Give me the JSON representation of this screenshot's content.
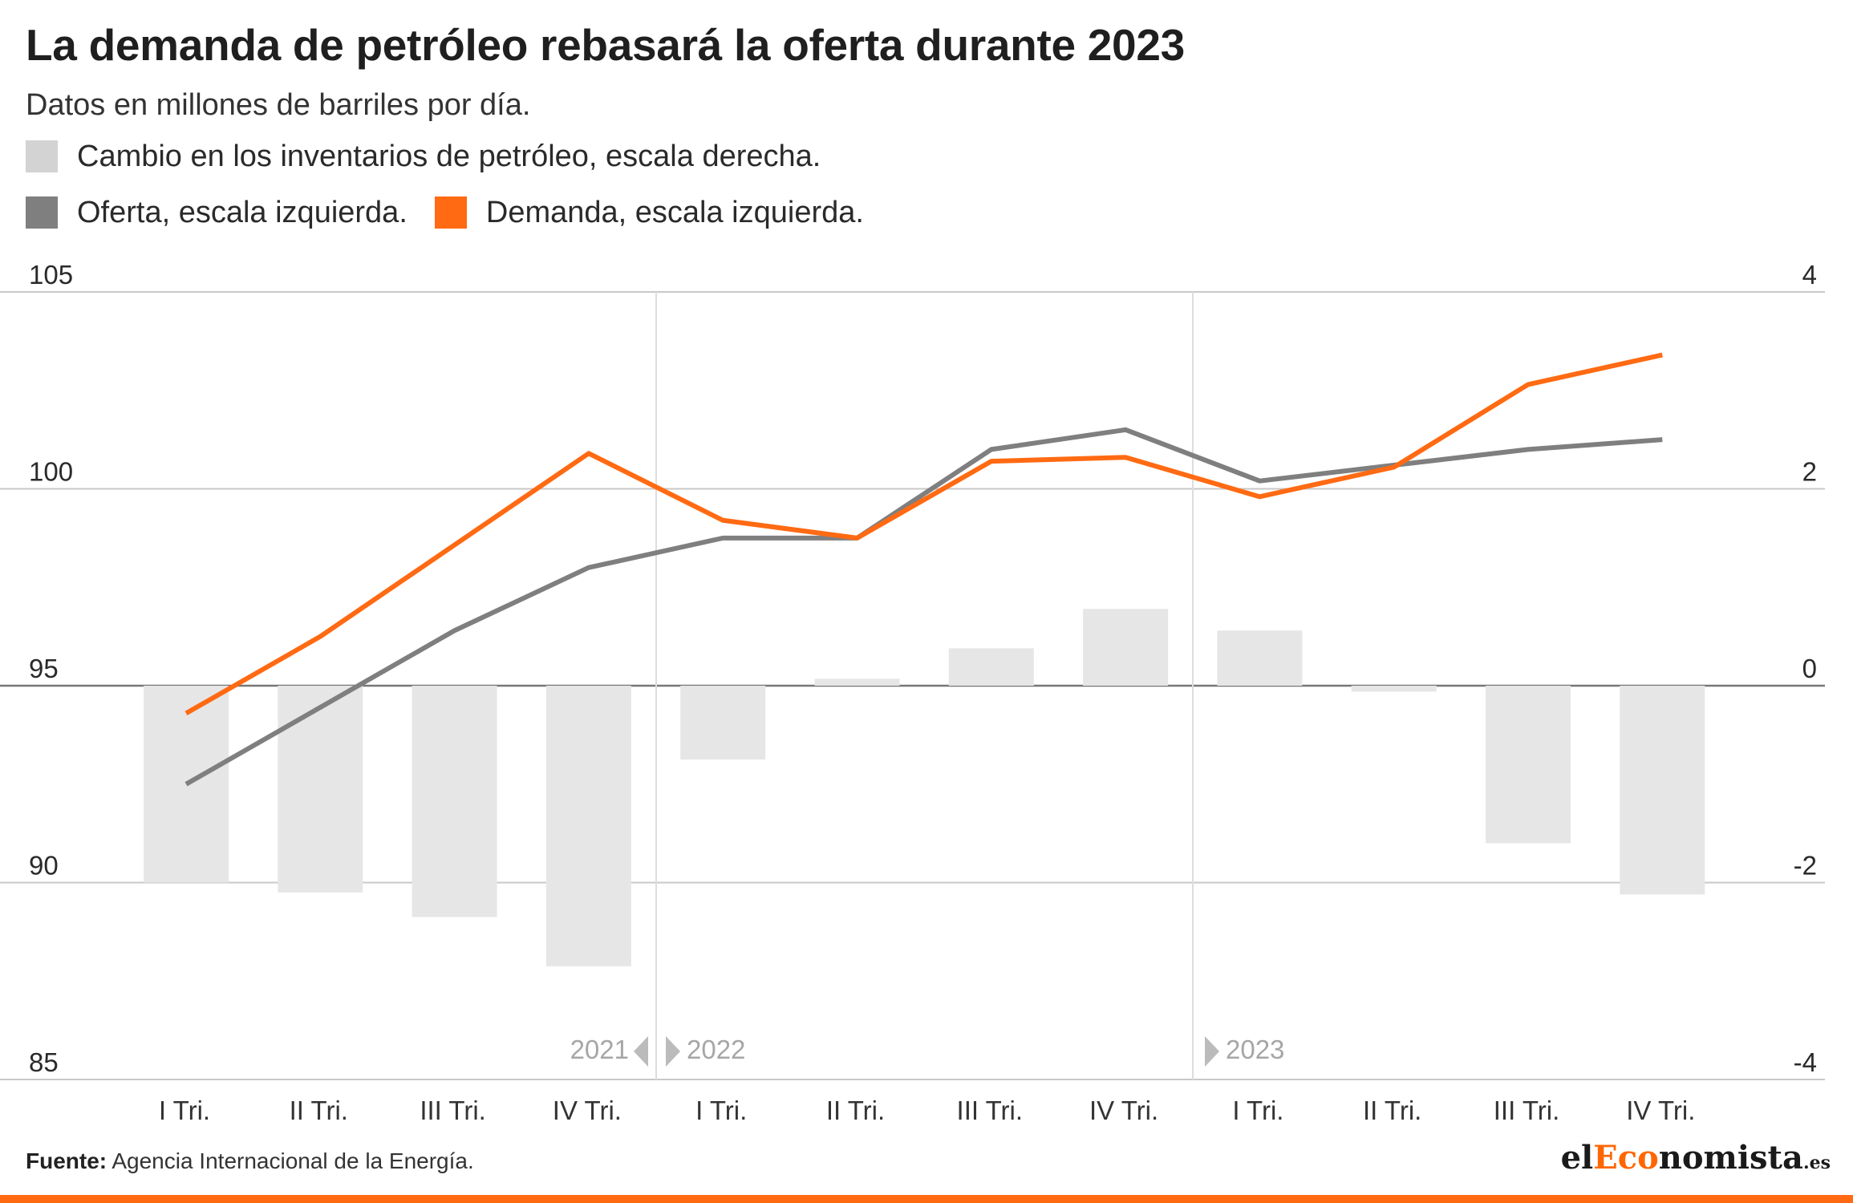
{
  "header": {
    "title": "La demanda de petróleo rebasará la oferta durante 2023",
    "subtitle": "Datos en millones de barriles por día."
  },
  "legend": {
    "inventory": "Cambio en los inventarios de petróleo, escala derecha.",
    "supply": "Oferta, escala izquierda.",
    "demand": "Demanda, escala izquierda."
  },
  "colors": {
    "inventory": "#e6e6e6",
    "inventory_swatch": "#d3d3d3",
    "supply": "#7f7f7f",
    "demand": "#ff6a13",
    "grid": "#c8c8c8",
    "zero_line": "#777777",
    "year_divider": "#dddddd",
    "year_label": "#a6a6a6"
  },
  "chart_data": {
    "type": "line",
    "categories": [
      "I Tri.",
      "II Tri.",
      "III Tri.",
      "IV Tri.",
      "I Tri.",
      "II Tri.",
      "III Tri.",
      "IV Tri.",
      "I Tri.",
      "II Tri.",
      "III Tri.",
      "IV Tri."
    ],
    "years": [
      {
        "label": "2021",
        "arrow": "left"
      },
      {
        "label": "2022",
        "arrow": "right"
      },
      {
        "label": "2023",
        "arrow": "right"
      }
    ],
    "y_left": {
      "ticks": [
        "105",
        "100",
        "95",
        "90",
        "85"
      ],
      "range": [
        85,
        105
      ]
    },
    "y_right": {
      "ticks": [
        "4",
        "2",
        "0",
        "-2",
        "-4"
      ],
      "range": [
        -4,
        4
      ]
    },
    "grid": true,
    "series": [
      {
        "name": "Cambio en los inventarios de petróleo, escala derecha.",
        "type": "bar",
        "axis": "right",
        "values": [
          -2.0,
          -2.1,
          -2.35,
          -2.85,
          -0.75,
          0.07,
          0.38,
          0.78,
          0.56,
          -0.06,
          -1.6,
          -2.12
        ]
      },
      {
        "name": "Oferta, escala izquierda.",
        "type": "line",
        "axis": "left",
        "values": [
          92.5,
          null,
          96.4,
          98.0,
          98.75,
          98.75,
          101.0,
          101.5,
          100.2,
          100.6,
          101.0,
          101.25
        ]
      },
      {
        "name": "Demanda, escala izquierda.",
        "type": "line",
        "axis": "left",
        "values": [
          94.3,
          96.25,
          null,
          100.9,
          99.2,
          98.75,
          100.7,
          100.8,
          99.8,
          100.55,
          102.65,
          103.4
        ]
      }
    ]
  },
  "footer": {
    "source_label": "Fuente:",
    "source_text": " Agencia Internacional de la Energía.",
    "logo_el": "el",
    "logo_eco": "Eco",
    "logo_nomista": "nomista",
    "logo_domain": ".es"
  }
}
